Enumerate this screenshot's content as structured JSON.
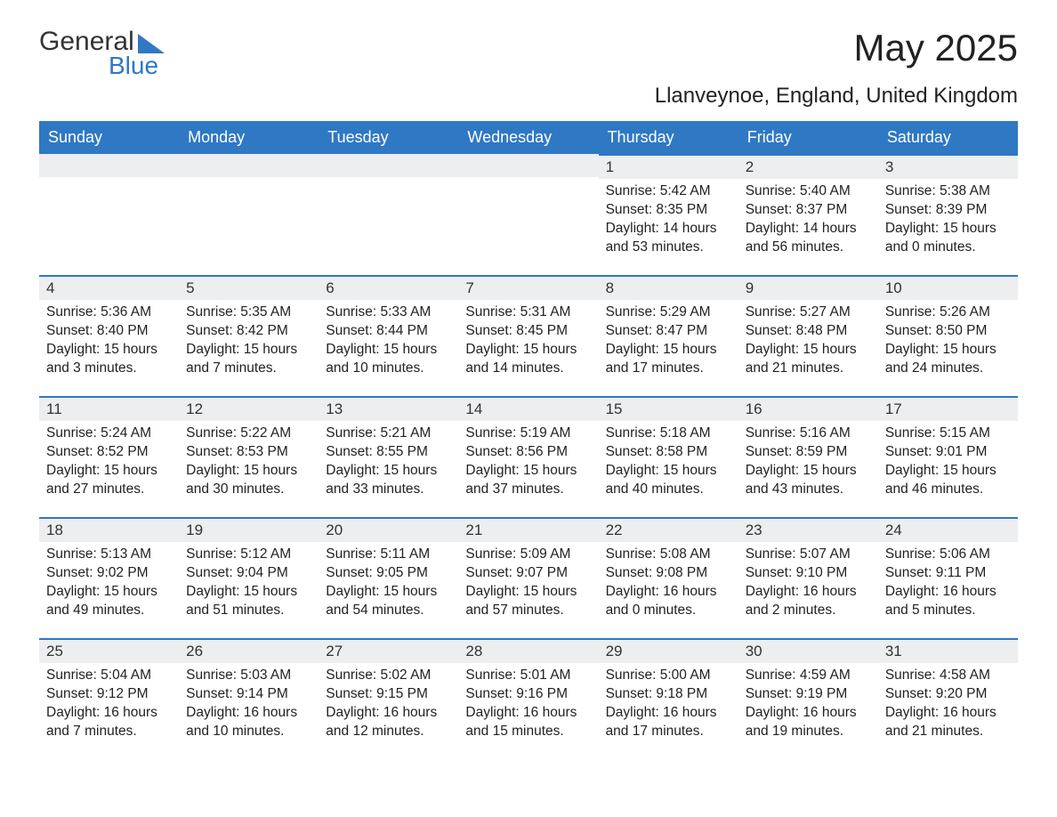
{
  "brand": {
    "part1": "General",
    "part2": "Blue"
  },
  "title": "May 2025",
  "subtitle": "Llanveynoe, England, United Kingdom",
  "colors": {
    "header_bg": "#2f78c4",
    "header_text": "#ffffff",
    "daybar_bg": "#eceeef",
    "daybar_border": "#2f78c4",
    "page_bg": "#ffffff",
    "text": "#222222"
  },
  "fonts": {
    "title_size_pt": 32,
    "subtitle_size_pt": 18,
    "header_size_pt": 14,
    "body_size_pt": 12
  },
  "weekdays": [
    "Sunday",
    "Monday",
    "Tuesday",
    "Wednesday",
    "Thursday",
    "Friday",
    "Saturday"
  ],
  "start_weekday_index": 4,
  "days": [
    {
      "n": "1",
      "sunrise": "Sunrise: 5:42 AM",
      "sunset": "Sunset: 8:35 PM",
      "daylight": "Daylight: 14 hours and 53 minutes."
    },
    {
      "n": "2",
      "sunrise": "Sunrise: 5:40 AM",
      "sunset": "Sunset: 8:37 PM",
      "daylight": "Daylight: 14 hours and 56 minutes."
    },
    {
      "n": "3",
      "sunrise": "Sunrise: 5:38 AM",
      "sunset": "Sunset: 8:39 PM",
      "daylight": "Daylight: 15 hours and 0 minutes."
    },
    {
      "n": "4",
      "sunrise": "Sunrise: 5:36 AM",
      "sunset": "Sunset: 8:40 PM",
      "daylight": "Daylight: 15 hours and 3 minutes."
    },
    {
      "n": "5",
      "sunrise": "Sunrise: 5:35 AM",
      "sunset": "Sunset: 8:42 PM",
      "daylight": "Daylight: 15 hours and 7 minutes."
    },
    {
      "n": "6",
      "sunrise": "Sunrise: 5:33 AM",
      "sunset": "Sunset: 8:44 PM",
      "daylight": "Daylight: 15 hours and 10 minutes."
    },
    {
      "n": "7",
      "sunrise": "Sunrise: 5:31 AM",
      "sunset": "Sunset: 8:45 PM",
      "daylight": "Daylight: 15 hours and 14 minutes."
    },
    {
      "n": "8",
      "sunrise": "Sunrise: 5:29 AM",
      "sunset": "Sunset: 8:47 PM",
      "daylight": "Daylight: 15 hours and 17 minutes."
    },
    {
      "n": "9",
      "sunrise": "Sunrise: 5:27 AM",
      "sunset": "Sunset: 8:48 PM",
      "daylight": "Daylight: 15 hours and 21 minutes."
    },
    {
      "n": "10",
      "sunrise": "Sunrise: 5:26 AM",
      "sunset": "Sunset: 8:50 PM",
      "daylight": "Daylight: 15 hours and 24 minutes."
    },
    {
      "n": "11",
      "sunrise": "Sunrise: 5:24 AM",
      "sunset": "Sunset: 8:52 PM",
      "daylight": "Daylight: 15 hours and 27 minutes."
    },
    {
      "n": "12",
      "sunrise": "Sunrise: 5:22 AM",
      "sunset": "Sunset: 8:53 PM",
      "daylight": "Daylight: 15 hours and 30 minutes."
    },
    {
      "n": "13",
      "sunrise": "Sunrise: 5:21 AM",
      "sunset": "Sunset: 8:55 PM",
      "daylight": "Daylight: 15 hours and 33 minutes."
    },
    {
      "n": "14",
      "sunrise": "Sunrise: 5:19 AM",
      "sunset": "Sunset: 8:56 PM",
      "daylight": "Daylight: 15 hours and 37 minutes."
    },
    {
      "n": "15",
      "sunrise": "Sunrise: 5:18 AM",
      "sunset": "Sunset: 8:58 PM",
      "daylight": "Daylight: 15 hours and 40 minutes."
    },
    {
      "n": "16",
      "sunrise": "Sunrise: 5:16 AM",
      "sunset": "Sunset: 8:59 PM",
      "daylight": "Daylight: 15 hours and 43 minutes."
    },
    {
      "n": "17",
      "sunrise": "Sunrise: 5:15 AM",
      "sunset": "Sunset: 9:01 PM",
      "daylight": "Daylight: 15 hours and 46 minutes."
    },
    {
      "n": "18",
      "sunrise": "Sunrise: 5:13 AM",
      "sunset": "Sunset: 9:02 PM",
      "daylight": "Daylight: 15 hours and 49 minutes."
    },
    {
      "n": "19",
      "sunrise": "Sunrise: 5:12 AM",
      "sunset": "Sunset: 9:04 PM",
      "daylight": "Daylight: 15 hours and 51 minutes."
    },
    {
      "n": "20",
      "sunrise": "Sunrise: 5:11 AM",
      "sunset": "Sunset: 9:05 PM",
      "daylight": "Daylight: 15 hours and 54 minutes."
    },
    {
      "n": "21",
      "sunrise": "Sunrise: 5:09 AM",
      "sunset": "Sunset: 9:07 PM",
      "daylight": "Daylight: 15 hours and 57 minutes."
    },
    {
      "n": "22",
      "sunrise": "Sunrise: 5:08 AM",
      "sunset": "Sunset: 9:08 PM",
      "daylight": "Daylight: 16 hours and 0 minutes."
    },
    {
      "n": "23",
      "sunrise": "Sunrise: 5:07 AM",
      "sunset": "Sunset: 9:10 PM",
      "daylight": "Daylight: 16 hours and 2 minutes."
    },
    {
      "n": "24",
      "sunrise": "Sunrise: 5:06 AM",
      "sunset": "Sunset: 9:11 PM",
      "daylight": "Daylight: 16 hours and 5 minutes."
    },
    {
      "n": "25",
      "sunrise": "Sunrise: 5:04 AM",
      "sunset": "Sunset: 9:12 PM",
      "daylight": "Daylight: 16 hours and 7 minutes."
    },
    {
      "n": "26",
      "sunrise": "Sunrise: 5:03 AM",
      "sunset": "Sunset: 9:14 PM",
      "daylight": "Daylight: 16 hours and 10 minutes."
    },
    {
      "n": "27",
      "sunrise": "Sunrise: 5:02 AM",
      "sunset": "Sunset: 9:15 PM",
      "daylight": "Daylight: 16 hours and 12 minutes."
    },
    {
      "n": "28",
      "sunrise": "Sunrise: 5:01 AM",
      "sunset": "Sunset: 9:16 PM",
      "daylight": "Daylight: 16 hours and 15 minutes."
    },
    {
      "n": "29",
      "sunrise": "Sunrise: 5:00 AM",
      "sunset": "Sunset: 9:18 PM",
      "daylight": "Daylight: 16 hours and 17 minutes."
    },
    {
      "n": "30",
      "sunrise": "Sunrise: 4:59 AM",
      "sunset": "Sunset: 9:19 PM",
      "daylight": "Daylight: 16 hours and 19 minutes."
    },
    {
      "n": "31",
      "sunrise": "Sunrise: 4:58 AM",
      "sunset": "Sunset: 9:20 PM",
      "daylight": "Daylight: 16 hours and 21 minutes."
    }
  ]
}
